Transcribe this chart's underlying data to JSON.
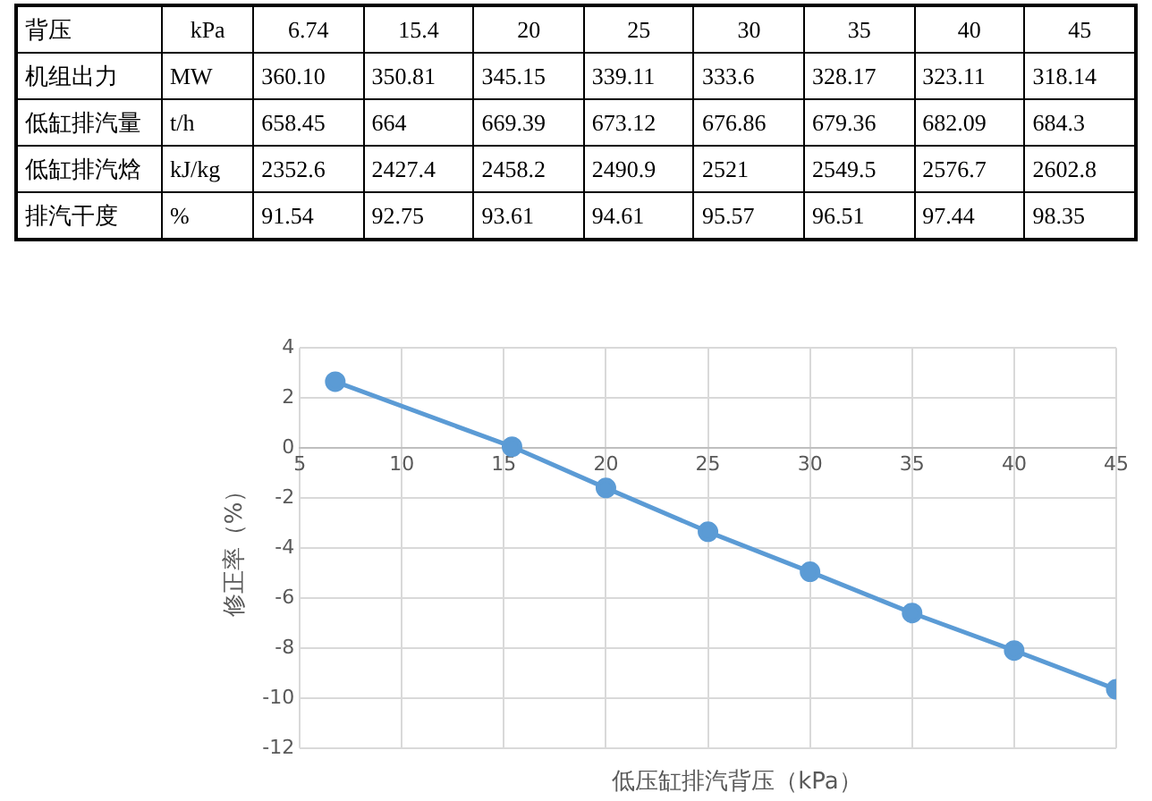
{
  "chart_data": [
    {
      "type": "other",
      "categories": [
        "背压",
        "kPa",
        "6.74",
        "15.4",
        "20",
        "25",
        "30",
        "35",
        "40",
        "45"
      ],
      "annotations": [
        "机组出力",
        "MW",
        "360.10",
        "350.81",
        "345.15",
        "339.11",
        "333.6",
        "328.17",
        "323.11",
        "318.14",
        "低缸排汽量",
        "t/h",
        "658.45",
        "664",
        "669.39",
        "673.12",
        "676.86",
        "679.36",
        "682.09",
        "684.3",
        "低缸排汽焓",
        "kJ/kg",
        "2352.6",
        "2427.4",
        "2458.2",
        "2490.9",
        "2521",
        "2549.5",
        "2576.7",
        "2602.8",
        "排汽干度",
        "%",
        "91.54",
        "92.75",
        "93.61",
        "94.61",
        "95.57",
        "96.51",
        "97.44",
        "98.35"
      ]
    },
    {
      "type": "line",
      "xlabel": "低压缸排汽背压（kPa）",
      "ylabel": "修正率（%）",
      "x": [
        6.74,
        15.4,
        20,
        25,
        30,
        35,
        40,
        45
      ],
      "series": [
        {
          "color": "#5b9bd5",
          "values": [
            2.65,
            0.05,
            -1.6,
            -3.35,
            -4.95,
            -6.6,
            -8.1,
            -9.65
          ]
        }
      ],
      "xlim": [
        5,
        45
      ],
      "xticks": [
        5,
        10,
        15,
        20,
        25,
        30,
        35,
        40,
        45
      ],
      "ylim": [
        -12,
        4
      ],
      "yticks": [
        -12,
        -10,
        -8,
        -6,
        -4,
        -2,
        0,
        2,
        4
      ],
      "grid": true,
      "legend": false,
      "marker": "circle",
      "line_style": "solid"
    }
  ]
}
